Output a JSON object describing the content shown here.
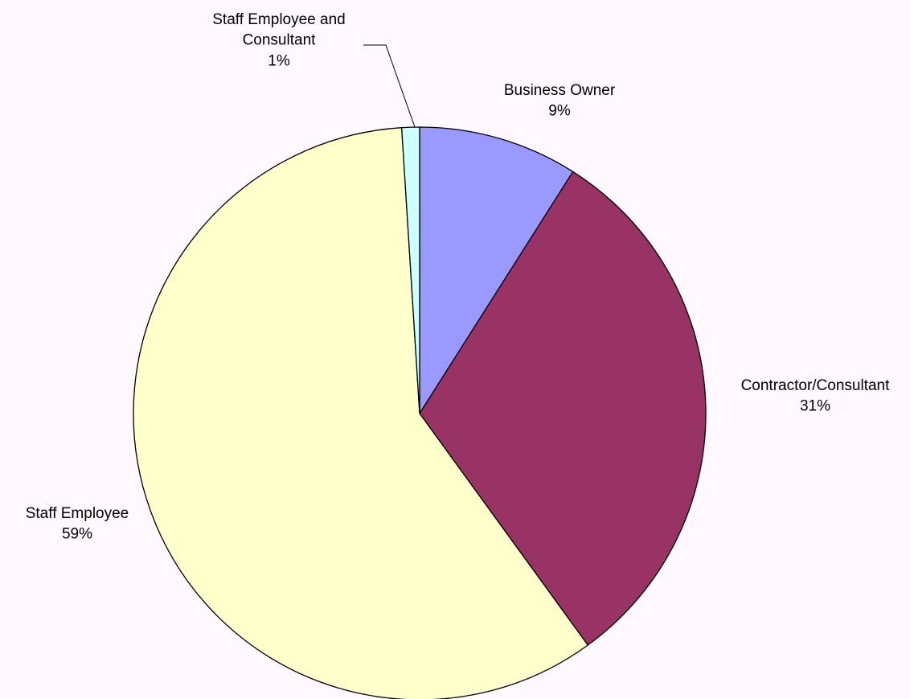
{
  "chart_data": {
    "type": "pie",
    "title": "",
    "slices": [
      {
        "label": "Business Owner",
        "value": 9,
        "display": "9%",
        "color": "#9999ff"
      },
      {
        "label": "Contractor/Consultant",
        "value": 31,
        "display": "31%",
        "color": "#993366"
      },
      {
        "label": "Staff Employee",
        "value": 59,
        "display": "59%",
        "color": "#ffffcc"
      },
      {
        "label": "Staff Employee and Consultant",
        "value": 1,
        "display": "1%",
        "color": "#ccffff"
      }
    ],
    "start_angle": "12 o'clock",
    "direction": "clockwise",
    "legend": "none"
  },
  "colors": {
    "background": "#fff8ff",
    "outline": "#000000"
  }
}
